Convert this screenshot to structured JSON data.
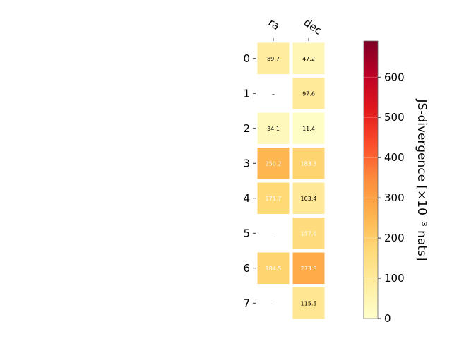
{
  "chart_data": {
    "type": "heatmap",
    "columns": [
      "ra",
      "dec"
    ],
    "rows": [
      "0",
      "1",
      "2",
      "3",
      "4",
      "5",
      "6",
      "7"
    ],
    "values": [
      [
        89.7,
        47.2
      ],
      [
        null,
        97.6
      ],
      [
        34.1,
        11.4
      ],
      [
        250.2,
        183.3
      ],
      [
        171.7,
        103.4
      ],
      [
        null,
        157.6
      ],
      [
        184.5,
        273.5
      ],
      [
        null,
        115.5
      ]
    ],
    "cell_labels": [
      [
        "89.7",
        "47.2"
      ],
      [
        "–",
        "97.6"
      ],
      [
        "34.1",
        "11.4"
      ],
      [
        "250.2",
        "183.3"
      ],
      [
        "171.7",
        "103.4"
      ],
      [
        "–",
        "157.6"
      ],
      [
        "184.5",
        "273.5"
      ],
      [
        "–",
        "115.5"
      ]
    ],
    "colorbar": {
      "label": "JS-divergence [×10⁻³ nats]",
      "range": [
        0,
        690
      ],
      "ticks": [
        0,
        100,
        200,
        300,
        400,
        500,
        600
      ],
      "tick_labels": [
        "0",
        "100",
        "200",
        "300",
        "400",
        "500",
        "600"
      ],
      "colormap": "YlOrRd"
    },
    "grid": false
  }
}
